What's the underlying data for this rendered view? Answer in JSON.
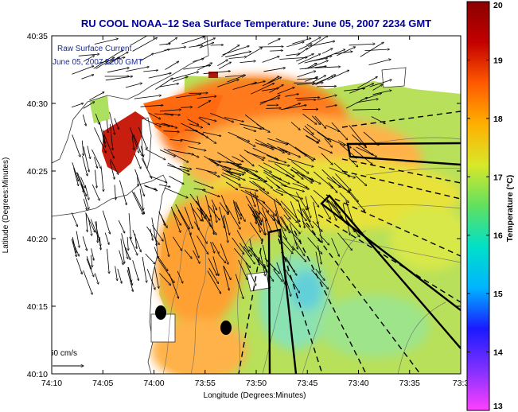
{
  "title": "RU COOL   NOAA–12  Sea Surface Temperature:  June 05, 2007 2234 GMT",
  "legend": {
    "line1": "Raw Surface Current",
    "line2": "June 05, 2007 2200 GMT"
  },
  "scale_label": "50 cm/s",
  "xlabel": "Longitude (Degrees:Minutes)",
  "ylabel": "Latitude (Degrees:Minutes)",
  "x_ticks": [
    "74:10",
    "74:05",
    "74:00",
    "73:55",
    "73:50",
    "73:45",
    "73:40",
    "73:35",
    "73:3"
  ],
  "y_ticks": [
    "40:35",
    "40:30",
    "40:25",
    "40:20",
    "40:15",
    "40:10"
  ],
  "colorbar": {
    "label": "Temperature (°C)",
    "ticks": [
      "20",
      "19",
      "18",
      "17",
      "16",
      "15",
      "14",
      "13"
    ],
    "range": [
      13,
      20
    ],
    "colors": [
      "#ff40ff",
      "#8030ff",
      "#1a1aff",
      "#00b4ff",
      "#00e0c8",
      "#60e060",
      "#d8e82a",
      "#ffb000",
      "#ff5a00",
      "#c40000",
      "#8a0000"
    ]
  },
  "map": {
    "land_color": "#ffffff",
    "water_colors": {
      "warm": "#ff8a20",
      "orange": "#ffb24a",
      "yellow": "#e8e83a",
      "green": "#aee060",
      "cyan": "#86e4a8",
      "blue": "#62d0d8",
      "red": "#c81e10"
    },
    "features": [
      "coastline",
      "bathymetry-contours",
      "current-vectors",
      "dashed-grid-lines",
      "ship-exclusion-zones",
      "buoy-markers"
    ]
  }
}
